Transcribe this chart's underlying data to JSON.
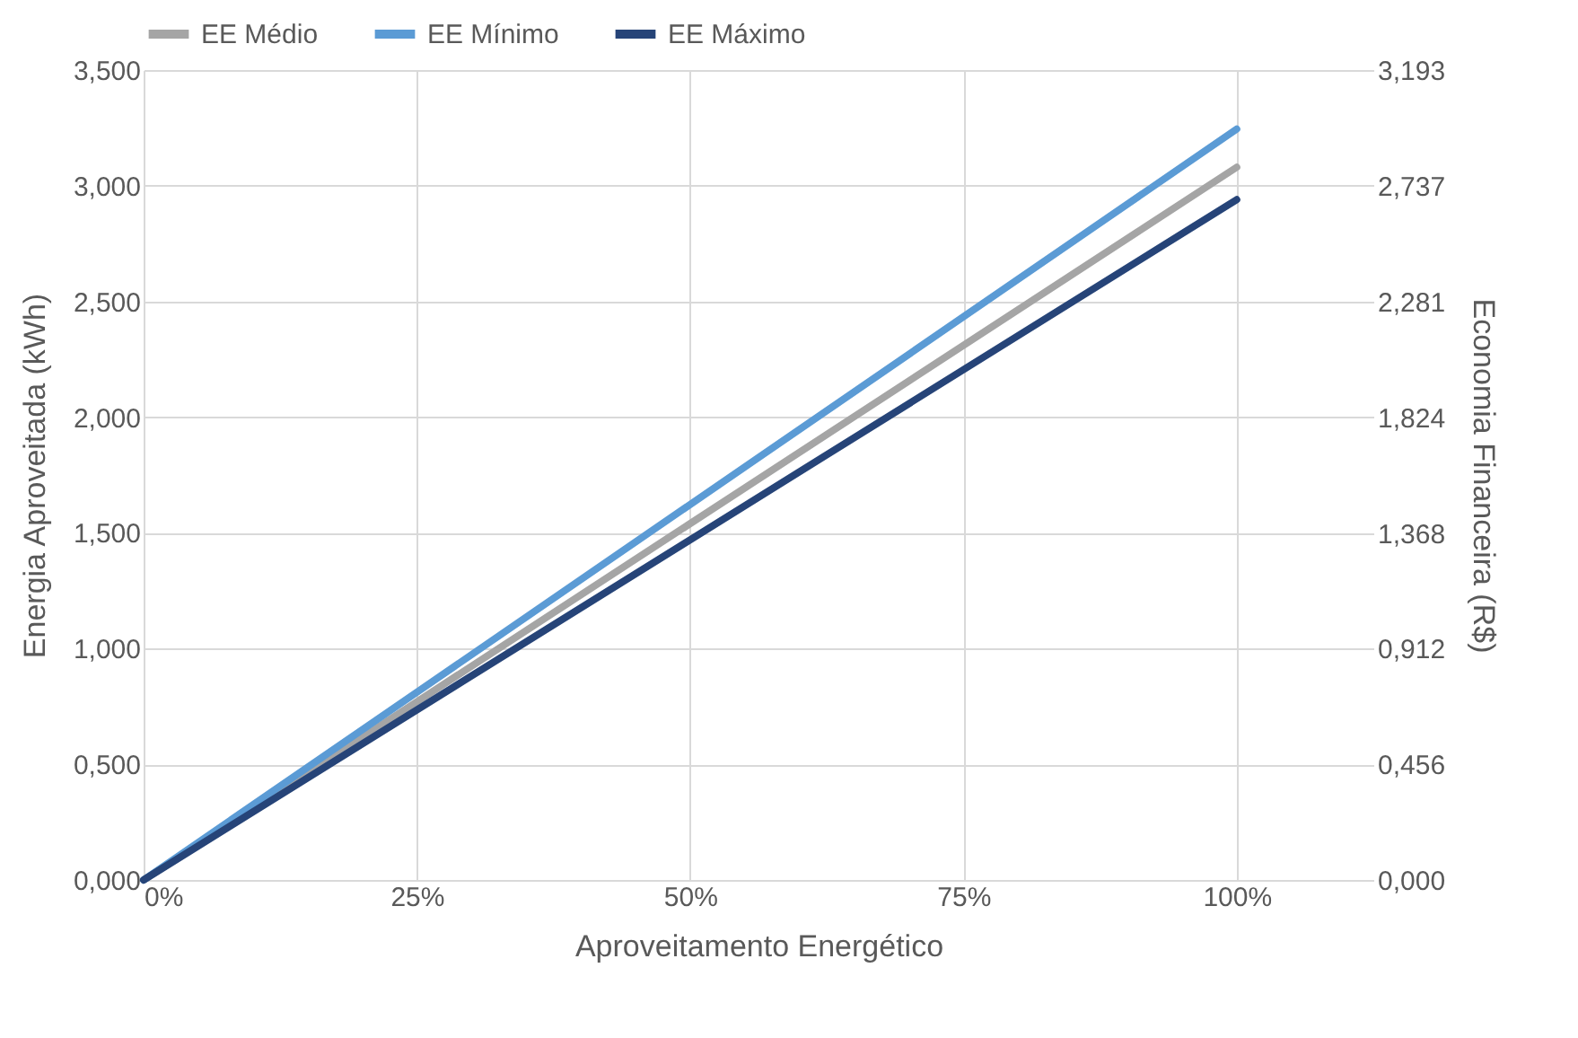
{
  "chart_data": {
    "type": "line",
    "xlabel": "Aproveitamento Energético",
    "ylabel": "Energia Aproveitada (kWh)",
    "y2label": "Economia Financeira (R$)",
    "x": [
      0,
      100
    ],
    "series": [
      {
        "name": "EE Médio",
        "color": "#a5a5a5",
        "values": [
          0,
          3.08
        ]
      },
      {
        "name": "EE Mínimo",
        "color": "#5b9bd5",
        "values": [
          0,
          3.245
        ]
      },
      {
        "name": "EE Máximo",
        "color": "#264478",
        "values": [
          0,
          2.94
        ]
      }
    ],
    "xlim": [
      0,
      112.5
    ],
    "xticks": [
      {
        "value": 0,
        "label": "0%"
      },
      {
        "value": 25,
        "label": "25%"
      },
      {
        "value": 50,
        "label": "50%"
      },
      {
        "value": 75,
        "label": "75%"
      },
      {
        "value": 100,
        "label": "100%"
      }
    ],
    "ylim": [
      0,
      3.5
    ],
    "yticks": [
      {
        "value": 0,
        "label": "0,000"
      },
      {
        "value": 0.5,
        "label": "0,500"
      },
      {
        "value": 1,
        "label": "1,000"
      },
      {
        "value": 1.5,
        "label": "1,500"
      },
      {
        "value": 2,
        "label": "2,000"
      },
      {
        "value": 2.5,
        "label": "2,500"
      },
      {
        "value": 3,
        "label": "3,000"
      },
      {
        "value": 3.5,
        "label": "3,500"
      }
    ],
    "y2lim": [
      0,
      3.193
    ],
    "y2ticks": [
      {
        "value": 0,
        "label": "0,000"
      },
      {
        "value": 0.456,
        "label": "0,456"
      },
      {
        "value": 0.912,
        "label": "0,912"
      },
      {
        "value": 1.368,
        "label": "1,368"
      },
      {
        "value": 1.824,
        "label": "1,824"
      },
      {
        "value": 2.281,
        "label": "2,281"
      },
      {
        "value": 2.737,
        "label": "2,737"
      },
      {
        "value": 3.193,
        "label": "3,193"
      }
    ],
    "grid": true,
    "legend": "top",
    "line_style": "solid",
    "marker": "none"
  }
}
